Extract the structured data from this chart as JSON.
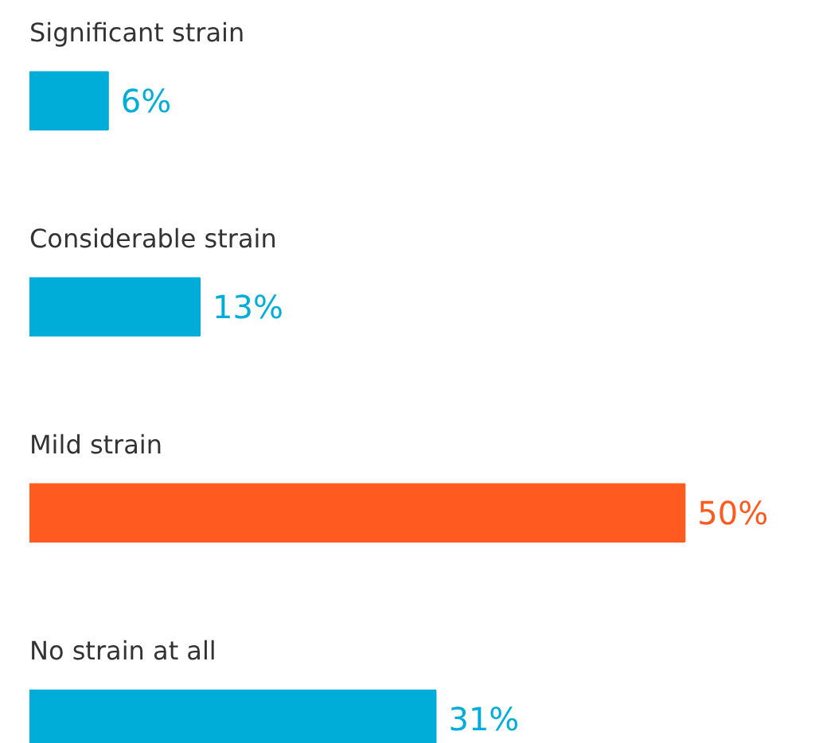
{
  "chart_data": {
    "type": "bar",
    "orientation": "horizontal",
    "categories": [
      "Significant strain",
      "Considerable strain",
      "Mild strain",
      "No strain at all"
    ],
    "values": [
      6,
      13,
      50,
      31
    ],
    "colors": [
      "#00acd8",
      "#00acd8",
      "#ff5a1f",
      "#00acd8"
    ],
    "value_labels": [
      "6%",
      "13%",
      "50%",
      "31%"
    ]
  }
}
